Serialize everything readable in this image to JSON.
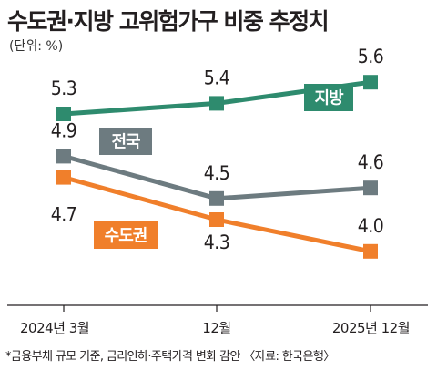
{
  "chart_data": {
    "type": "line",
    "title": "수도권·지방 고위험가구 비중 추정치",
    "unit": "(단위: %)",
    "categories": [
      "2024년 3월",
      "12월",
      "2025년 12월"
    ],
    "series": [
      {
        "name": "지방",
        "values": [
          5.3,
          5.4,
          5.6
        ],
        "labels": [
          "5.3",
          "5.4",
          "5.6"
        ],
        "color": "#2e8b6e"
      },
      {
        "name": "전국",
        "values": [
          4.9,
          4.5,
          4.6
        ],
        "labels": [
          "4.9",
          "4.5",
          "4.6"
        ],
        "color": "#6d7b80"
      },
      {
        "name": "수도권",
        "values": [
          4.7,
          4.3,
          4.0
        ],
        "labels": [
          "4.7",
          "4.3",
          "4.0"
        ],
        "color": "#f07f2b"
      }
    ],
    "ylim": [
      3.8,
      5.8
    ],
    "grid": false,
    "footnote": "*금융부채 규모 기준, 금리인하·주택가격 변화 감안 〈자료: 한국은행〉"
  }
}
